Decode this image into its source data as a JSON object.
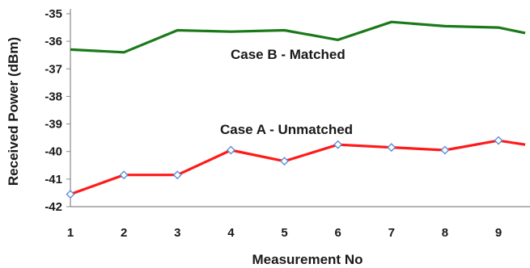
{
  "chart_data": {
    "type": "line",
    "xlabel": "Measurement No",
    "ylabel": "Received Power (dBm)",
    "categories": [
      "1",
      "2",
      "3",
      "4",
      "5",
      "6",
      "7",
      "8",
      "9"
    ],
    "x_extends_to": 9.5,
    "ylim": [
      -42,
      -35
    ],
    "yticks": [
      -35,
      -36,
      -37,
      -38,
      -39,
      -40,
      -41,
      -42
    ],
    "grid": false,
    "legend": "none",
    "series": [
      {
        "name": "Case B - Matched",
        "color": "#1a7a1a",
        "markers": false,
        "x": [
          1,
          2,
          3,
          4,
          5,
          6,
          7,
          8,
          9,
          9.5
        ],
        "values": [
          -36.3,
          -36.4,
          -35.6,
          -35.65,
          -35.6,
          -35.95,
          -35.3,
          -35.45,
          -35.5,
          -35.7
        ]
      },
      {
        "name": "Case A - Unmatched",
        "color": "#ff1a1a",
        "marker_color": "#5b8fd6",
        "markers": true,
        "x": [
          1,
          2,
          3,
          4,
          5,
          6,
          7,
          8,
          9,
          9.5
        ],
        "values": [
          -41.55,
          -40.85,
          -40.85,
          -39.95,
          -40.35,
          -39.75,
          -39.85,
          -39.95,
          -39.6,
          -39.75
        ]
      }
    ],
    "annotations": [
      {
        "text": "Case B - Matched",
        "series": 0
      },
      {
        "text": "Case A - Unmatched",
        "series": 1
      }
    ]
  }
}
